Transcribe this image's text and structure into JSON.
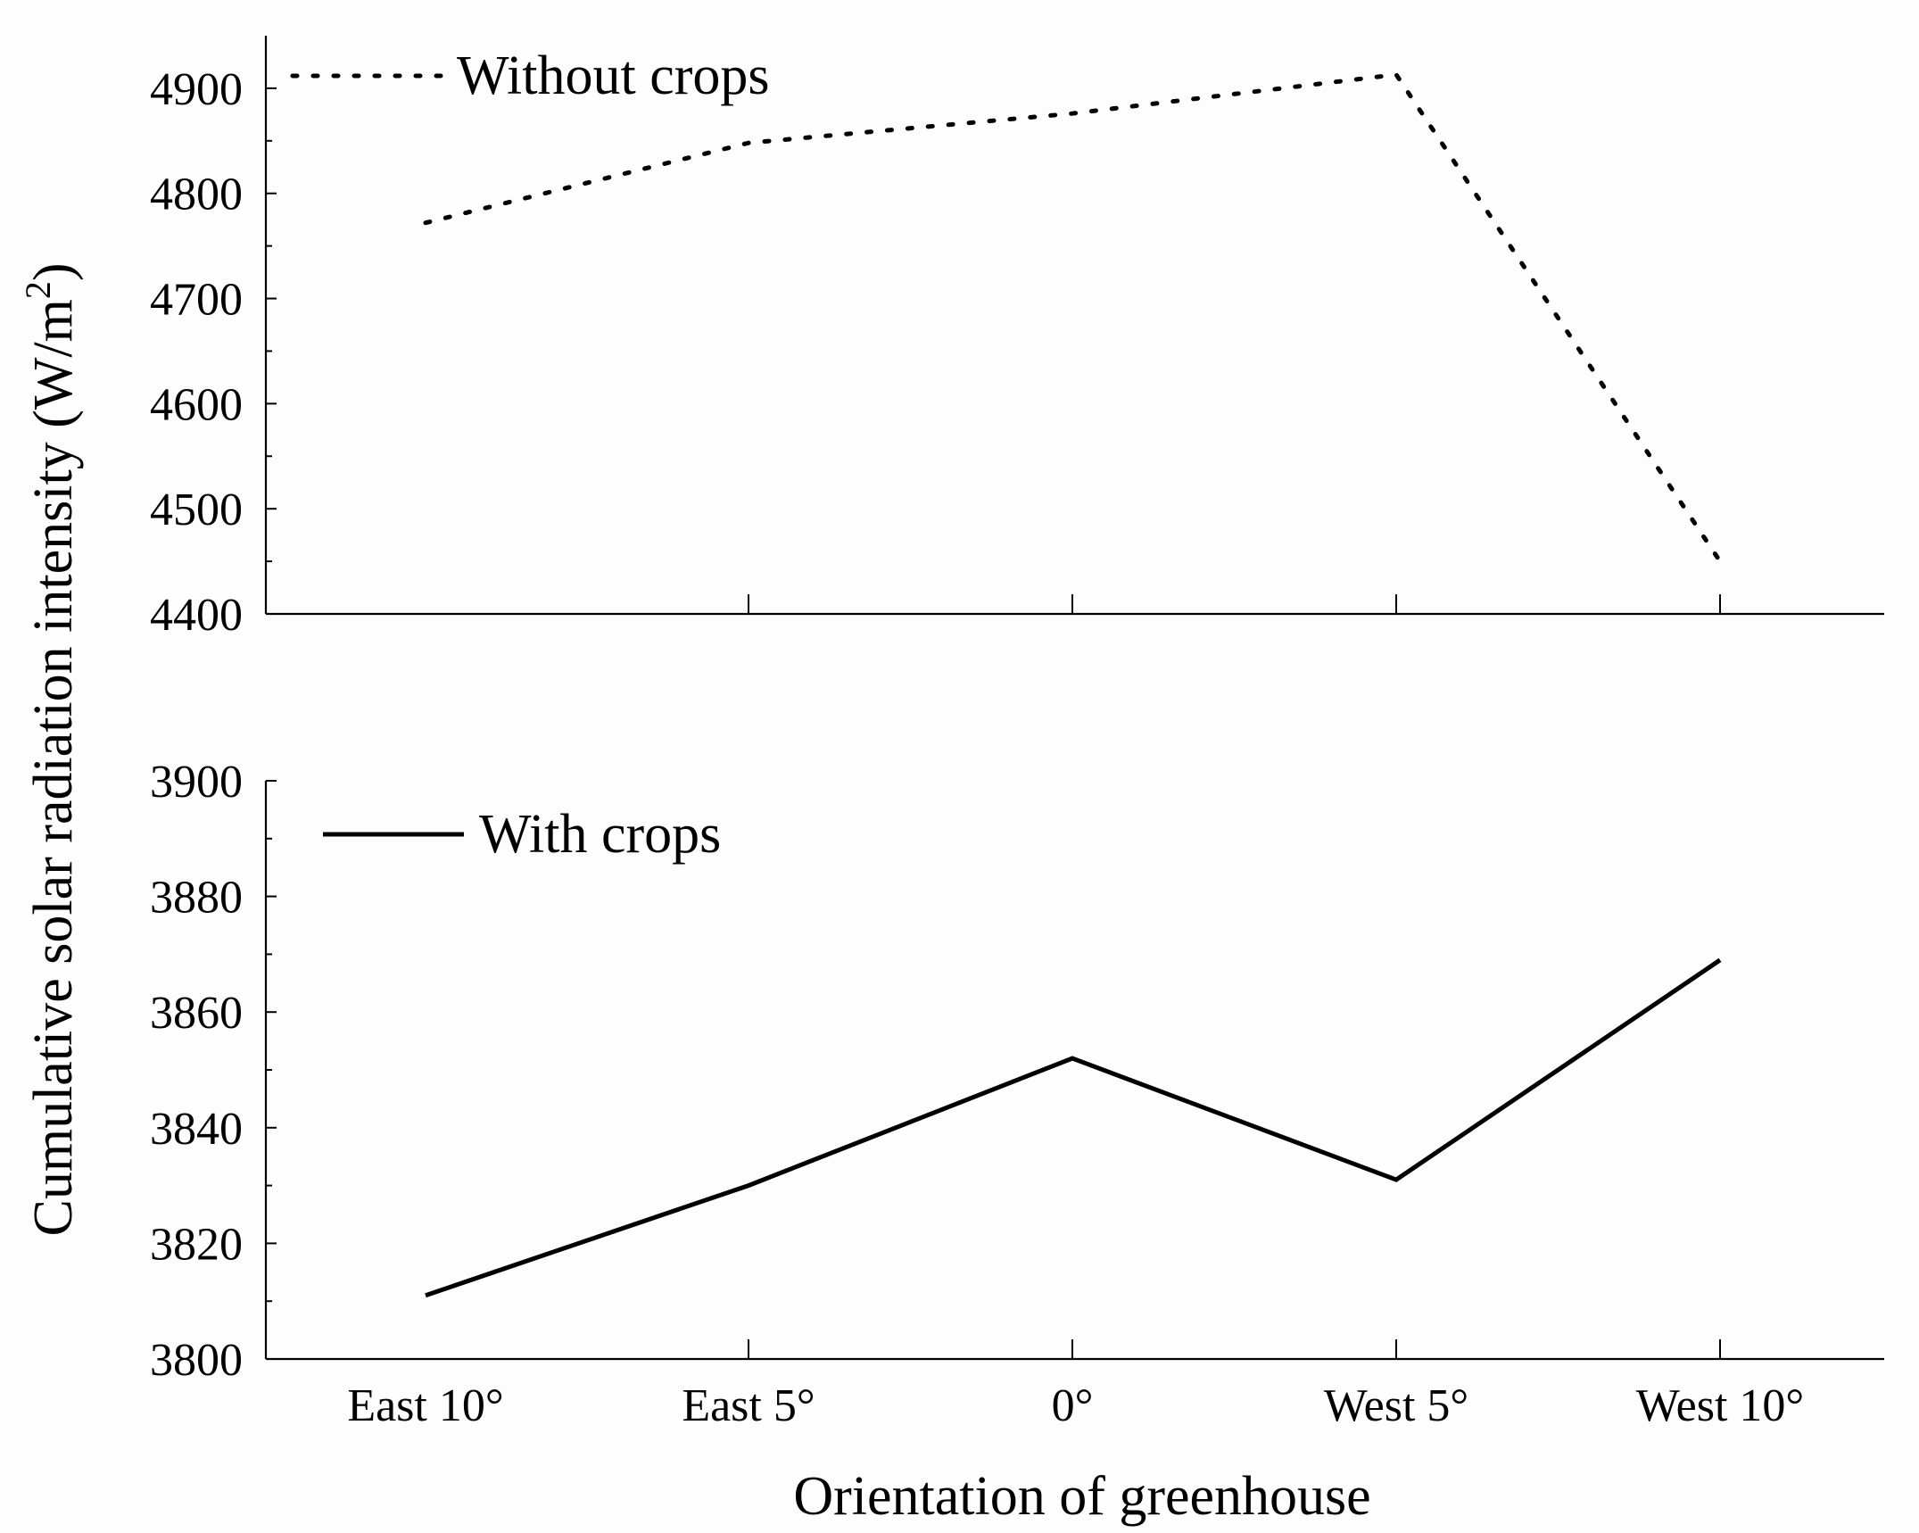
{
  "chart_data": [
    {
      "type": "line",
      "panel": "top",
      "categories": [
        "East 10°",
        "East 5°",
        "0°",
        "West 5°",
        "West 10°"
      ],
      "series": [
        {
          "name": "Without crops",
          "values": [
            4772,
            4848,
            4876,
            4913,
            4450
          ],
          "style": "dotted"
        }
      ],
      "ylim": [
        4400,
        4950
      ],
      "yticks": [
        4400,
        4500,
        4600,
        4700,
        4800,
        4900
      ],
      "legend_position": "top-left"
    },
    {
      "type": "line",
      "panel": "bottom",
      "categories": [
        "East 10°",
        "East 5°",
        "0°",
        "West 5°",
        "West 10°"
      ],
      "series": [
        {
          "name": "With crops",
          "values": [
            3811,
            3830,
            3852,
            3831,
            3869
          ],
          "style": "solid"
        }
      ],
      "ylim": [
        3800,
        3900
      ],
      "yticks": [
        3800,
        3820,
        3840,
        3860,
        3880,
        3900
      ],
      "legend_position": "top-left"
    }
  ],
  "xlabel": "Orientation of greenhouse",
  "ylabel_main": "Cumulative solar radiation intensity (W/m",
  "ylabel_sup": "2",
  "ylabel_close": ")",
  "line_color": "#000000"
}
